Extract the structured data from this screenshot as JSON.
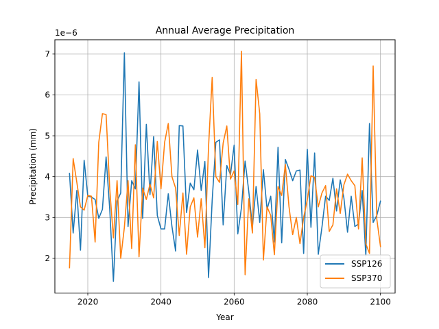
{
  "chart_data": {
    "type": "line",
    "title": "Annual Average Precipitation",
    "xlabel": "Year",
    "ylabel": "Precipitation (mm)",
    "y_scale_label": "1e−6",
    "y_scale": 1e-06,
    "xlim": [
      2011,
      2104
    ],
    "ylim": [
      1.15,
      7.35
    ],
    "xticks": [
      2020,
      2040,
      2060,
      2080,
      2100
    ],
    "yticks": [
      2,
      3,
      4,
      5,
      6,
      7
    ],
    "grid": true,
    "legend_position": "lower-right",
    "x": [
      2015,
      2016,
      2017,
      2018,
      2019,
      2020,
      2021,
      2022,
      2023,
      2024,
      2025,
      2026,
      2027,
      2028,
      2029,
      2030,
      2031,
      2032,
      2033,
      2034,
      2035,
      2036,
      2037,
      2038,
      2039,
      2040,
      2041,
      2042,
      2043,
      2044,
      2045,
      2046,
      2047,
      2048,
      2049,
      2050,
      2051,
      2052,
      2053,
      2054,
      2055,
      2056,
      2057,
      2058,
      2059,
      2060,
      2061,
      2062,
      2063,
      2064,
      2065,
      2066,
      2067,
      2068,
      2069,
      2070,
      2071,
      2072,
      2073,
      2074,
      2075,
      2076,
      2077,
      2078,
      2079,
      2080,
      2081,
      2082,
      2083,
      2084,
      2085,
      2086,
      2087,
      2088,
      2089,
      2090,
      2091,
      2092,
      2093,
      2094,
      2095,
      2096,
      2097,
      2098,
      2099,
      2100
    ],
    "series": [
      {
        "name": "SSP126",
        "color": "#1f77b4",
        "values": [
          4.08,
          2.62,
          3.66,
          2.2,
          4.4,
          3.52,
          3.5,
          3.44,
          2.98,
          3.2,
          4.48,
          3.2,
          1.44,
          3.4,
          3.6,
          7.03,
          2.78,
          3.9,
          3.7,
          6.32,
          2.98,
          5.28,
          3.56,
          4.98,
          3.05,
          2.72,
          2.72,
          3.58,
          2.78,
          2.18,
          5.25,
          5.24,
          3.12,
          3.84,
          3.68,
          4.65,
          3.66,
          4.37,
          1.53,
          3.42,
          4.84,
          4.9,
          2.82,
          4.27,
          4.05,
          4.77,
          2.6,
          3.24,
          4.38,
          3.64,
          2.77,
          3.76,
          2.88,
          4.17,
          3.2,
          3.52,
          2.4,
          4.72,
          2.38,
          4.42,
          4.18,
          3.9,
          4.14,
          4.16,
          2.12,
          4.67,
          2.76,
          4.58,
          2.1,
          2.76,
          3.52,
          3.42,
          3.96,
          3.16,
          3.92,
          3.48,
          2.64,
          3.52,
          2.78,
          2.84,
          3.66,
          2.06,
          5.3,
          2.88,
          3.05,
          3.4
        ]
      },
      {
        "name": "SSP370",
        "color": "#ff7f0e",
        "values": [
          1.77,
          4.44,
          3.86,
          3.26,
          3.18,
          3.54,
          3.52,
          2.4,
          4.84,
          5.54,
          5.52,
          3.7,
          2.5,
          3.9,
          2.0,
          2.76,
          3.9,
          2.24,
          4.78,
          2.04,
          3.72,
          3.44,
          3.82,
          3.48,
          4.86,
          3.7,
          4.84,
          5.3,
          4.0,
          3.72,
          2.56,
          3.6,
          2.1,
          3.26,
          3.48,
          2.52,
          3.46,
          2.26,
          4.72,
          6.43,
          4.0,
          3.86,
          4.82,
          5.24,
          3.94,
          4.14,
          3.32,
          7.07,
          1.6,
          3.46,
          2.62,
          6.38,
          5.54,
          1.96,
          3.26,
          3.05,
          2.09,
          3.76,
          3.54,
          4.3,
          3.26,
          2.58,
          3.0,
          2.36,
          3.0,
          3.43,
          4.02,
          3.98,
          3.26,
          3.6,
          3.78,
          2.66,
          2.82,
          3.7,
          3.1,
          3.8,
          4.06,
          3.9,
          3.78,
          2.72,
          4.46,
          2.36,
          2.12,
          6.71,
          2.96,
          2.29
        ]
      }
    ]
  }
}
